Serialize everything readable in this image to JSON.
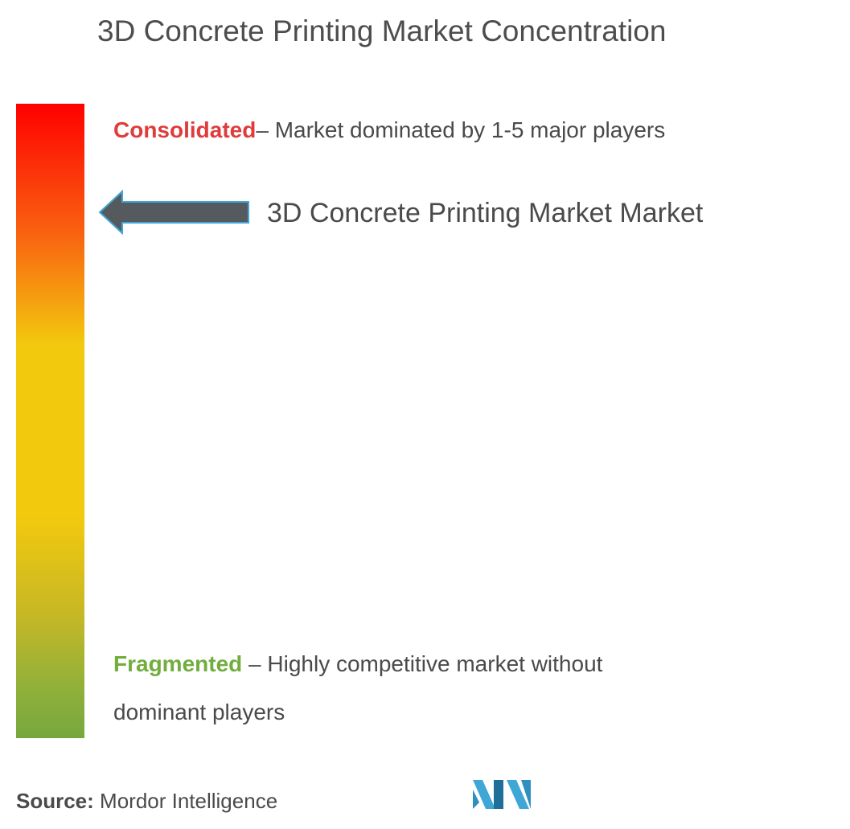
{
  "title": "3D Concrete Printing Market Concentration",
  "scale": {
    "top_keyword": "Consolidated",
    "top_description": "– Market dominated by 1-5 major players",
    "bottom_keyword": "Fragmented",
    "bottom_description": " – Highly competitive market without dominant players"
  },
  "marker": {
    "label": "3D Concrete Printing Market Market"
  },
  "source": {
    "prefix": "Source:",
    "text": " Mordor Intelligence"
  },
  "colors": {
    "consolidated": "#e03c3c",
    "fragmented": "#72ad3e",
    "arrow": "#555a5e",
    "logo": "#3fa7d6"
  },
  "chart_data": {
    "type": "bar",
    "title": "3D Concrete Printing Market Concentration",
    "scale_top": "Consolidated",
    "scale_bottom": "Fragmented",
    "marker_label": "3D Concrete Printing Market Market",
    "marker_position_fraction_from_top": 0.17
  }
}
